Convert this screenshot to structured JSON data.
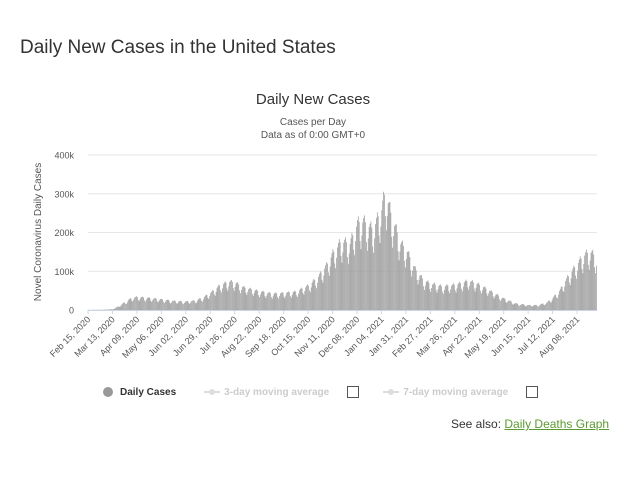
{
  "page": {
    "title": "Daily New Cases in the United States",
    "see_also_label": "See also:",
    "see_also_link": "Daily Deaths Graph"
  },
  "colors": {
    "bar": "#999999",
    "grid": "#e6e6e6",
    "axis_text": "#555555",
    "legend_off": "#cccccc",
    "link": "#5b9a32"
  },
  "legend": {
    "items": [
      {
        "label": "Daily Cases",
        "active": true
      },
      {
        "label": "3-day moving average",
        "active": false
      },
      {
        "label": "7-day moving average",
        "active": false
      }
    ]
  },
  "chart_data": {
    "type": "bar",
    "title": "Daily New Cases",
    "subtitle": "Cases per Day",
    "subtitle2": "Data as of 0:00 GMT+0",
    "xlabel": "",
    "ylabel": "Novel Coronavirus Daily Cases",
    "ylim": [
      0,
      400000
    ],
    "yticks": [
      0,
      100000,
      200000,
      300000,
      400000
    ],
    "ytick_labels": [
      "0",
      "100k",
      "200k",
      "300k",
      "400k"
    ],
    "grid": true,
    "legend_position": "bottom",
    "x_range": [
      "2020-02-15",
      "2021-08-29"
    ],
    "xticks": [
      "2020-02-15",
      "2020-03-13",
      "2020-04-09",
      "2020-05-06",
      "2020-06-02",
      "2020-06-29",
      "2020-07-26",
      "2020-08-22",
      "2020-09-18",
      "2020-10-15",
      "2020-11-11",
      "2020-12-08",
      "2021-01-04",
      "2021-01-31",
      "2021-02-27",
      "2021-03-26",
      "2021-04-22",
      "2021-05-19",
      "2021-06-15",
      "2021-07-12",
      "2021-08-08"
    ],
    "xtick_labels": [
      "Feb 15, 2020",
      "Mar 13, 2020",
      "Apr 09, 2020",
      "May 06, 2020",
      "Jun 02, 2020",
      "Jun 29, 2020",
      "Jul 26, 2020",
      "Aug 22, 2020",
      "Sep 18, 2020",
      "Oct 15, 2020",
      "Nov 11, 2020",
      "Dec 08, 2020",
      "Jan 04, 2021",
      "Jan 31, 2021",
      "Feb 27, 2021",
      "Mar 26, 2021",
      "Apr 22, 2021",
      "May 19, 2021",
      "Jun 15, 2021",
      "Jul 12, 2021",
      "Aug 08, 2021"
    ],
    "series": [
      {
        "name": "Daily Cases",
        "points": [
          [
            "2020-02-15",
            0
          ],
          [
            "2020-03-01",
            200
          ],
          [
            "2020-03-13",
            2000
          ],
          [
            "2020-03-20",
            10000
          ],
          [
            "2020-03-27",
            20000
          ],
          [
            "2020-04-03",
            30000
          ],
          [
            "2020-04-09",
            32000
          ],
          [
            "2020-04-20",
            30000
          ],
          [
            "2020-05-06",
            26000
          ],
          [
            "2020-05-20",
            22000
          ],
          [
            "2020-06-02",
            21000
          ],
          [
            "2020-06-12",
            23000
          ],
          [
            "2020-06-20",
            30000
          ],
          [
            "2020-06-29",
            42000
          ],
          [
            "2020-07-10",
            62000
          ],
          [
            "2020-07-20",
            70000
          ],
          [
            "2020-07-26",
            68000
          ],
          [
            "2020-08-05",
            55000
          ],
          [
            "2020-08-22",
            46000
          ],
          [
            "2020-09-05",
            40000
          ],
          [
            "2020-09-18",
            42000
          ],
          [
            "2020-10-01",
            45000
          ],
          [
            "2020-10-15",
            60000
          ],
          [
            "2020-10-25",
            80000
          ],
          [
            "2020-11-04",
            110000
          ],
          [
            "2020-11-11",
            140000
          ],
          [
            "2020-11-20",
            170000
          ],
          [
            "2020-11-30",
            165000
          ],
          [
            "2020-12-08",
            215000
          ],
          [
            "2020-12-15",
            220000
          ],
          [
            "2020-12-25",
            200000
          ],
          [
            "2021-01-04",
            250000
          ],
          [
            "2021-01-08",
            295000
          ],
          [
            "2021-01-15",
            230000
          ],
          [
            "2021-01-25",
            165000
          ],
          [
            "2021-01-31",
            150000
          ],
          [
            "2021-02-10",
            100000
          ],
          [
            "2021-02-20",
            72000
          ],
          [
            "2021-02-27",
            65000
          ],
          [
            "2021-03-12",
            58000
          ],
          [
            "2021-03-26",
            62000
          ],
          [
            "2021-04-10",
            72000
          ],
          [
            "2021-04-22",
            62000
          ],
          [
            "2021-05-05",
            45000
          ],
          [
            "2021-05-19",
            28000
          ],
          [
            "2021-06-01",
            16000
          ],
          [
            "2021-06-15",
            12000
          ],
          [
            "2021-06-25",
            12000
          ],
          [
            "2021-07-05",
            18000
          ],
          [
            "2021-07-12",
            30000
          ],
          [
            "2021-07-20",
            50000
          ],
          [
            "2021-07-28",
            80000
          ],
          [
            "2021-08-08",
            115000
          ],
          [
            "2021-08-15",
            135000
          ],
          [
            "2021-08-22",
            145000
          ],
          [
            "2021-08-29",
            130000
          ]
        ]
      }
    ]
  }
}
